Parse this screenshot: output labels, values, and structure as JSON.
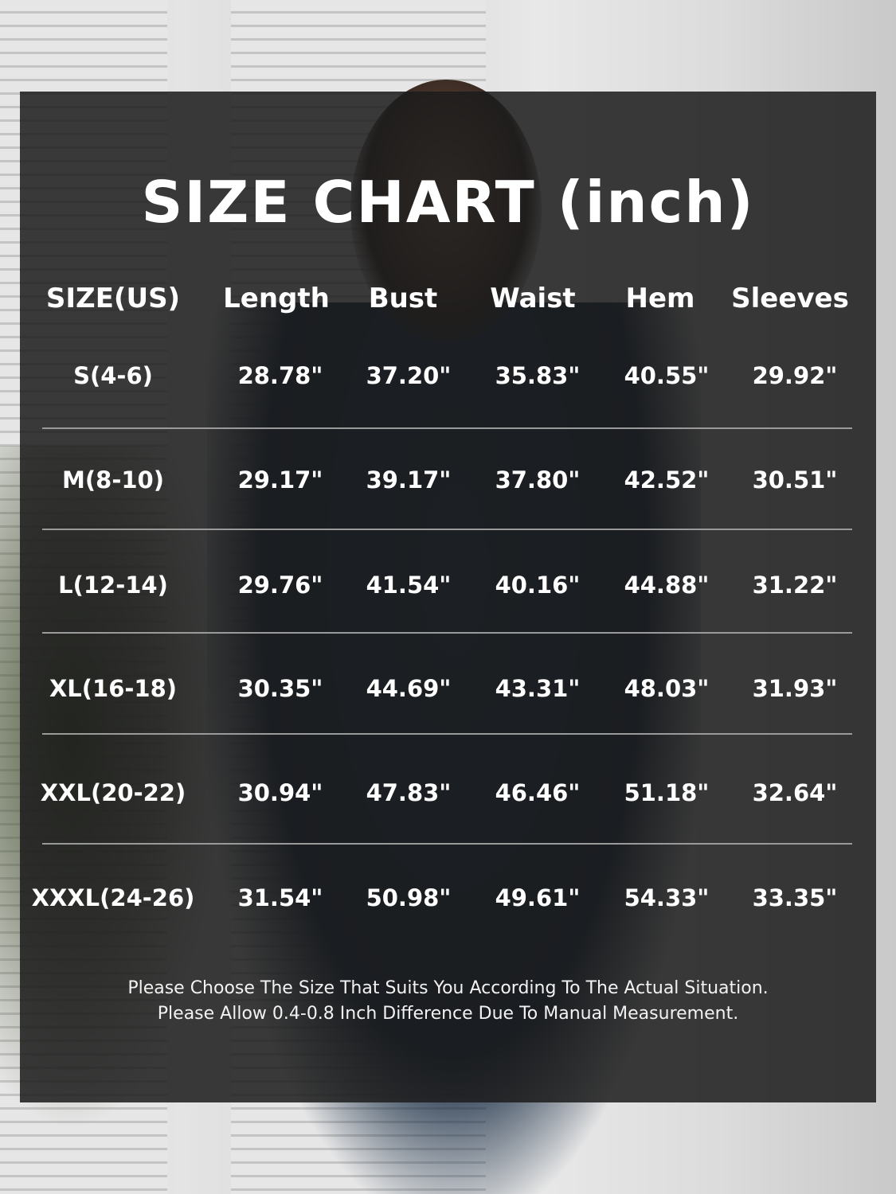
{
  "title": "SIZE CHART (inch)",
  "table": {
    "headers": [
      "SIZE(US)",
      "Length",
      "Bust",
      "Waist",
      "Hem",
      "Sleeves"
    ],
    "rows": [
      [
        "S(4-6)",
        "28.78\"",
        "37.20\"",
        "35.83\"",
        "40.55\"",
        "29.92\""
      ],
      [
        "M(8-10)",
        "29.17\"",
        "39.17\"",
        "37.80\"",
        "42.52\"",
        "30.51\""
      ],
      [
        "L(12-14)",
        "29.76\"",
        "41.54\"",
        "40.16\"",
        "44.88\"",
        "31.22\""
      ],
      [
        "XL(16-18)",
        "30.35\"",
        "44.69\"",
        "43.31\"",
        "48.03\"",
        "31.93\""
      ],
      [
        "XXL(20-22)",
        "30.94\"",
        "47.83\"",
        "46.46\"",
        "51.18\"",
        "32.64\""
      ],
      [
        "XXXL(24-26)",
        "31.54\"",
        "50.98\"",
        "49.61\"",
        "54.33\"",
        "33.35\""
      ]
    ]
  },
  "notes": [
    "Please Choose The Size That Suits You According To The Actual Situation.",
    "Please Allow 0.4-0.8 Inch Difference Due To Manual Measurement."
  ]
}
